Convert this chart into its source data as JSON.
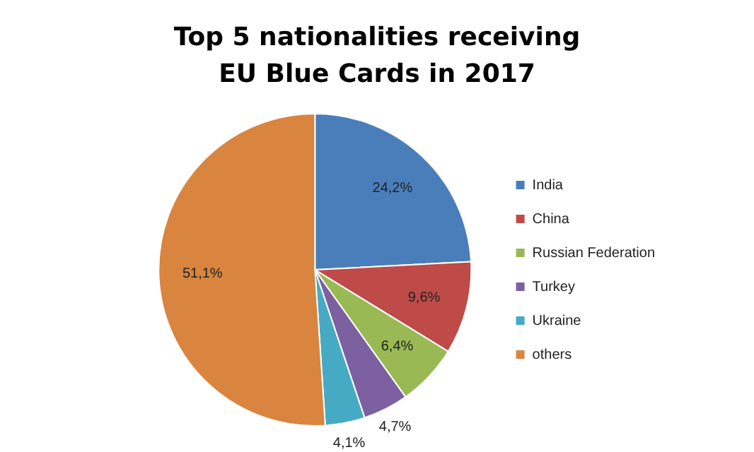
{
  "chart_data": {
    "type": "pie",
    "title": "Top 5 nationalities receiving EU Blue Cards in 2017",
    "categories": [
      "India",
      "China",
      "Russian Federation",
      "Turkey",
      "Ukraine",
      "others"
    ],
    "values": [
      24.2,
      9.6,
      6.4,
      4.7,
      4.1,
      51.1
    ],
    "value_labels": [
      "24,2%",
      "9,6%",
      "6,4%",
      "4,7%",
      "4,1%",
      "51,1%"
    ],
    "colors": [
      "#4a7ebb",
      "#be4b48",
      "#98b954",
      "#7d60a0",
      "#46aac5",
      "#d9843f"
    ],
    "legend": "right"
  }
}
